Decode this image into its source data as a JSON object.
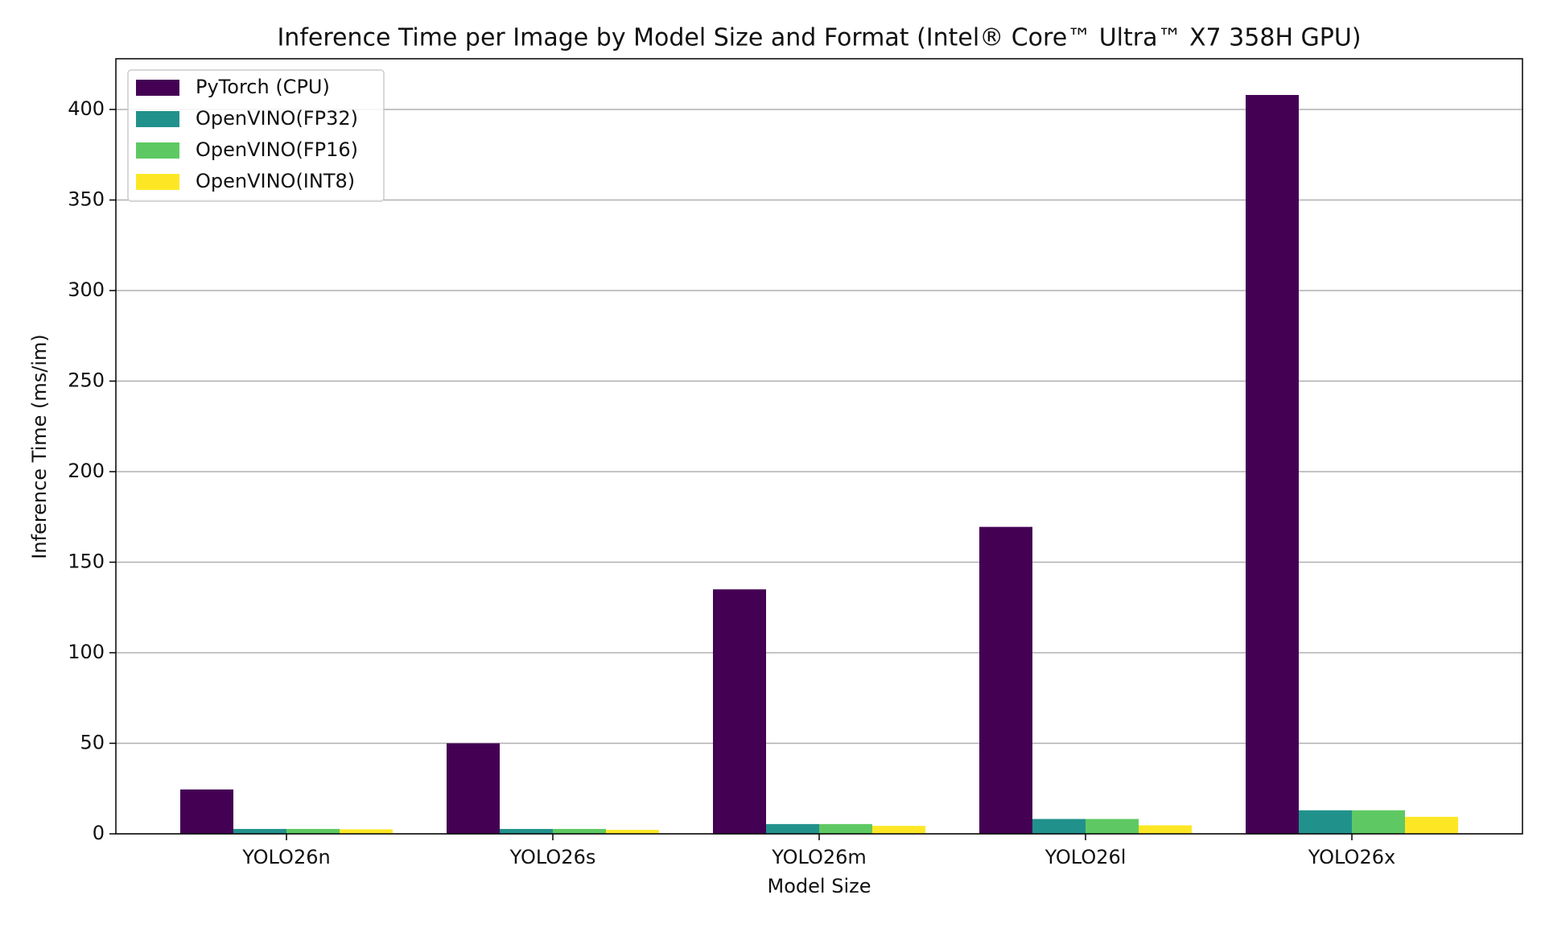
{
  "chart_data": {
    "type": "bar",
    "title": "Inference Time per Image by Model Size and Format (Intel® Core™ Ultra™ X7 358H GPU)",
    "x_label": "Model Size",
    "y_label": "Inference Time (ms/im)",
    "categories": [
      "YOLO26n",
      "YOLO26s",
      "YOLO26m",
      "YOLO26l",
      "YOLO26x"
    ],
    "series": [
      {
        "name": "PyTorch (CPU)",
        "color": "#440154",
        "values": [
          24.5,
          50,
          135,
          169.5,
          408
        ]
      },
      {
        "name": "OpenVINO(FP32)",
        "color": "#21918c",
        "values": [
          2.7,
          2.7,
          5.4,
          8.2,
          13
        ]
      },
      {
        "name": "OpenVINO(FP16)",
        "color": "#5ec962",
        "values": [
          2.7,
          2.7,
          5.4,
          8.2,
          13
        ]
      },
      {
        "name": "OpenVINO(INT8)",
        "color": "#fde725",
        "values": [
          2.5,
          2.2,
          4.4,
          4.7,
          9.4
        ]
      }
    ],
    "ylim": [
      0,
      428
    ],
    "yticks": [
      0,
      50,
      100,
      150,
      200,
      250,
      300,
      350,
      400
    ],
    "grid": true,
    "legend": "upper-left"
  }
}
